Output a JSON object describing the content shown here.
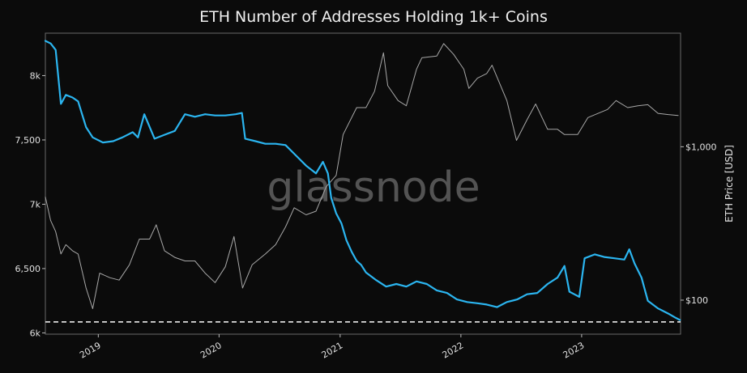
{
  "chart_data": {
    "type": "line",
    "title": "ETH Number of Addresses Holding 1k+ Coins",
    "watermark": "glassnode",
    "x_tick_labels": [
      "2019",
      "2020",
      "2021",
      "2022",
      "2023"
    ],
    "y_left": {
      "tick_labels": [
        "6k",
        "6,500",
        "7k",
        "7,500",
        "8k"
      ],
      "ticks": [
        6000,
        6500,
        7000,
        7500,
        8000
      ],
      "ylim": [
        5990,
        8330
      ]
    },
    "y_right": {
      "label": "ETH Price [USD]",
      "tick_labels": [
        "$100",
        "$1,000"
      ],
      "ticks": [
        100,
        1000
      ],
      "scale": "log",
      "ylim": [
        60,
        5500
      ]
    },
    "reference_line": {
      "axis": "left",
      "value": 6085,
      "style": "dashed",
      "color": "#ffffff"
    },
    "series": [
      {
        "color": "#2bb5f0",
        "axis": "left",
        "x": [
          "2018-07-25",
          "2018-08-10",
          "2018-08-25",
          "2018-09-10",
          "2018-09-25",
          "2018-10-15",
          "2018-11-01",
          "2018-11-25",
          "2018-12-15",
          "2019-01-15",
          "2019-02-15",
          "2019-03-15",
          "2019-04-15",
          "2019-05-01",
          "2019-05-20",
          "2019-06-20",
          "2019-07-20",
          "2019-08-20",
          "2019-09-20",
          "2019-10-20",
          "2019-11-20",
          "2019-12-20",
          "2020-01-20",
          "2020-02-20",
          "2020-03-10",
          "2020-03-20",
          "2020-04-20",
          "2020-05-20",
          "2020-06-20",
          "2020-07-20",
          "2020-08-20",
          "2020-09-20",
          "2020-10-20",
          "2020-11-10",
          "2020-11-25",
          "2020-12-05",
          "2020-12-20",
          "2021-01-05",
          "2021-01-20",
          "2021-02-05",
          "2021-02-20",
          "2021-03-05",
          "2021-03-20",
          "2021-04-20",
          "2021-05-20",
          "2021-06-20",
          "2021-07-20",
          "2021-08-20",
          "2021-09-20",
          "2021-10-20",
          "2021-11-20",
          "2021-12-20",
          "2022-01-20",
          "2022-02-20",
          "2022-03-20",
          "2022-04-20",
          "2022-05-20",
          "2022-06-20",
          "2022-07-20",
          "2022-08-20",
          "2022-09-20",
          "2022-10-20",
          "2022-11-10",
          "2022-11-25",
          "2022-12-10",
          "2022-12-25",
          "2023-01-10",
          "2023-02-10",
          "2023-03-10",
          "2023-04-10",
          "2023-05-10",
          "2023-05-25",
          "2023-06-10",
          "2023-07-01",
          "2023-07-20",
          "2023-08-20",
          "2023-09-20",
          "2023-10-10",
          "2023-10-25"
        ],
        "values": [
          8270,
          8250,
          8200,
          7780,
          7850,
          7830,
          7800,
          7600,
          7520,
          7480,
          7490,
          7520,
          7560,
          7520,
          7700,
          7510,
          7540,
          7570,
          7700,
          7680,
          7700,
          7690,
          7690,
          7700,
          7710,
          7510,
          7490,
          7470,
          7470,
          7460,
          7380,
          7300,
          7240,
          7330,
          7240,
          7050,
          6930,
          6850,
          6720,
          6630,
          6560,
          6530,
          6470,
          6410,
          6360,
          6380,
          6360,
          6400,
          6380,
          6330,
          6310,
          6260,
          6240,
          6230,
          6220,
          6200,
          6240,
          6260,
          6300,
          6310,
          6380,
          6430,
          6520,
          6320,
          6300,
          6280,
          6580,
          6610,
          6590,
          6580,
          6570,
          6650,
          6540,
          6430,
          6250,
          6190,
          6150,
          6120,
          6100
        ]
      },
      {
        "color": "#a8a8a8",
        "axis": "right",
        "x": [
          "2018-07-25",
          "2018-08-10",
          "2018-08-25",
          "2018-09-10",
          "2018-09-25",
          "2018-10-15",
          "2018-11-01",
          "2018-11-25",
          "2018-12-15",
          "2019-01-05",
          "2019-02-05",
          "2019-03-05",
          "2019-04-05",
          "2019-05-05",
          "2019-06-05",
          "2019-06-25",
          "2019-07-20",
          "2019-08-20",
          "2019-09-20",
          "2019-10-20",
          "2019-11-20",
          "2019-12-20",
          "2020-01-20",
          "2020-02-15",
          "2020-03-12",
          "2020-04-10",
          "2020-05-20",
          "2020-06-20",
          "2020-07-20",
          "2020-08-15",
          "2020-09-20",
          "2020-10-20",
          "2020-11-20",
          "2020-12-20",
          "2021-01-10",
          "2021-02-20",
          "2021-03-20",
          "2021-04-15",
          "2021-05-12",
          "2021-05-25",
          "2021-06-25",
          "2021-07-20",
          "2021-08-20",
          "2021-09-05",
          "2021-10-20",
          "2021-11-10",
          "2021-12-10",
          "2022-01-10",
          "2022-01-25",
          "2022-02-20",
          "2022-03-20",
          "2022-04-05",
          "2022-05-20",
          "2022-06-18",
          "2022-07-20",
          "2022-08-15",
          "2022-09-20",
          "2022-10-20",
          "2022-11-10",
          "2022-12-20",
          "2023-01-20",
          "2023-02-20",
          "2023-03-20",
          "2023-04-15",
          "2023-05-20",
          "2023-06-20",
          "2023-07-20",
          "2023-08-20",
          "2023-09-20",
          "2023-10-20"
        ],
        "values": [
          470,
          330,
          280,
          200,
          230,
          210,
          200,
          120,
          88,
          150,
          140,
          135,
          170,
          250,
          250,
          310,
          210,
          190,
          180,
          180,
          150,
          130,
          165,
          260,
          120,
          170,
          200,
          230,
          300,
          400,
          360,
          380,
          550,
          650,
          1200,
          1800,
          1800,
          2300,
          4100,
          2500,
          2000,
          1850,
          3200,
          3800,
          3900,
          4700,
          4000,
          3200,
          2400,
          2800,
          3000,
          3400,
          2000,
          1100,
          1500,
          1900,
          1300,
          1300,
          1200,
          1200,
          1550,
          1650,
          1750,
          2000,
          1800,
          1850,
          1880,
          1650,
          1620,
          1600
        ]
      }
    ]
  }
}
